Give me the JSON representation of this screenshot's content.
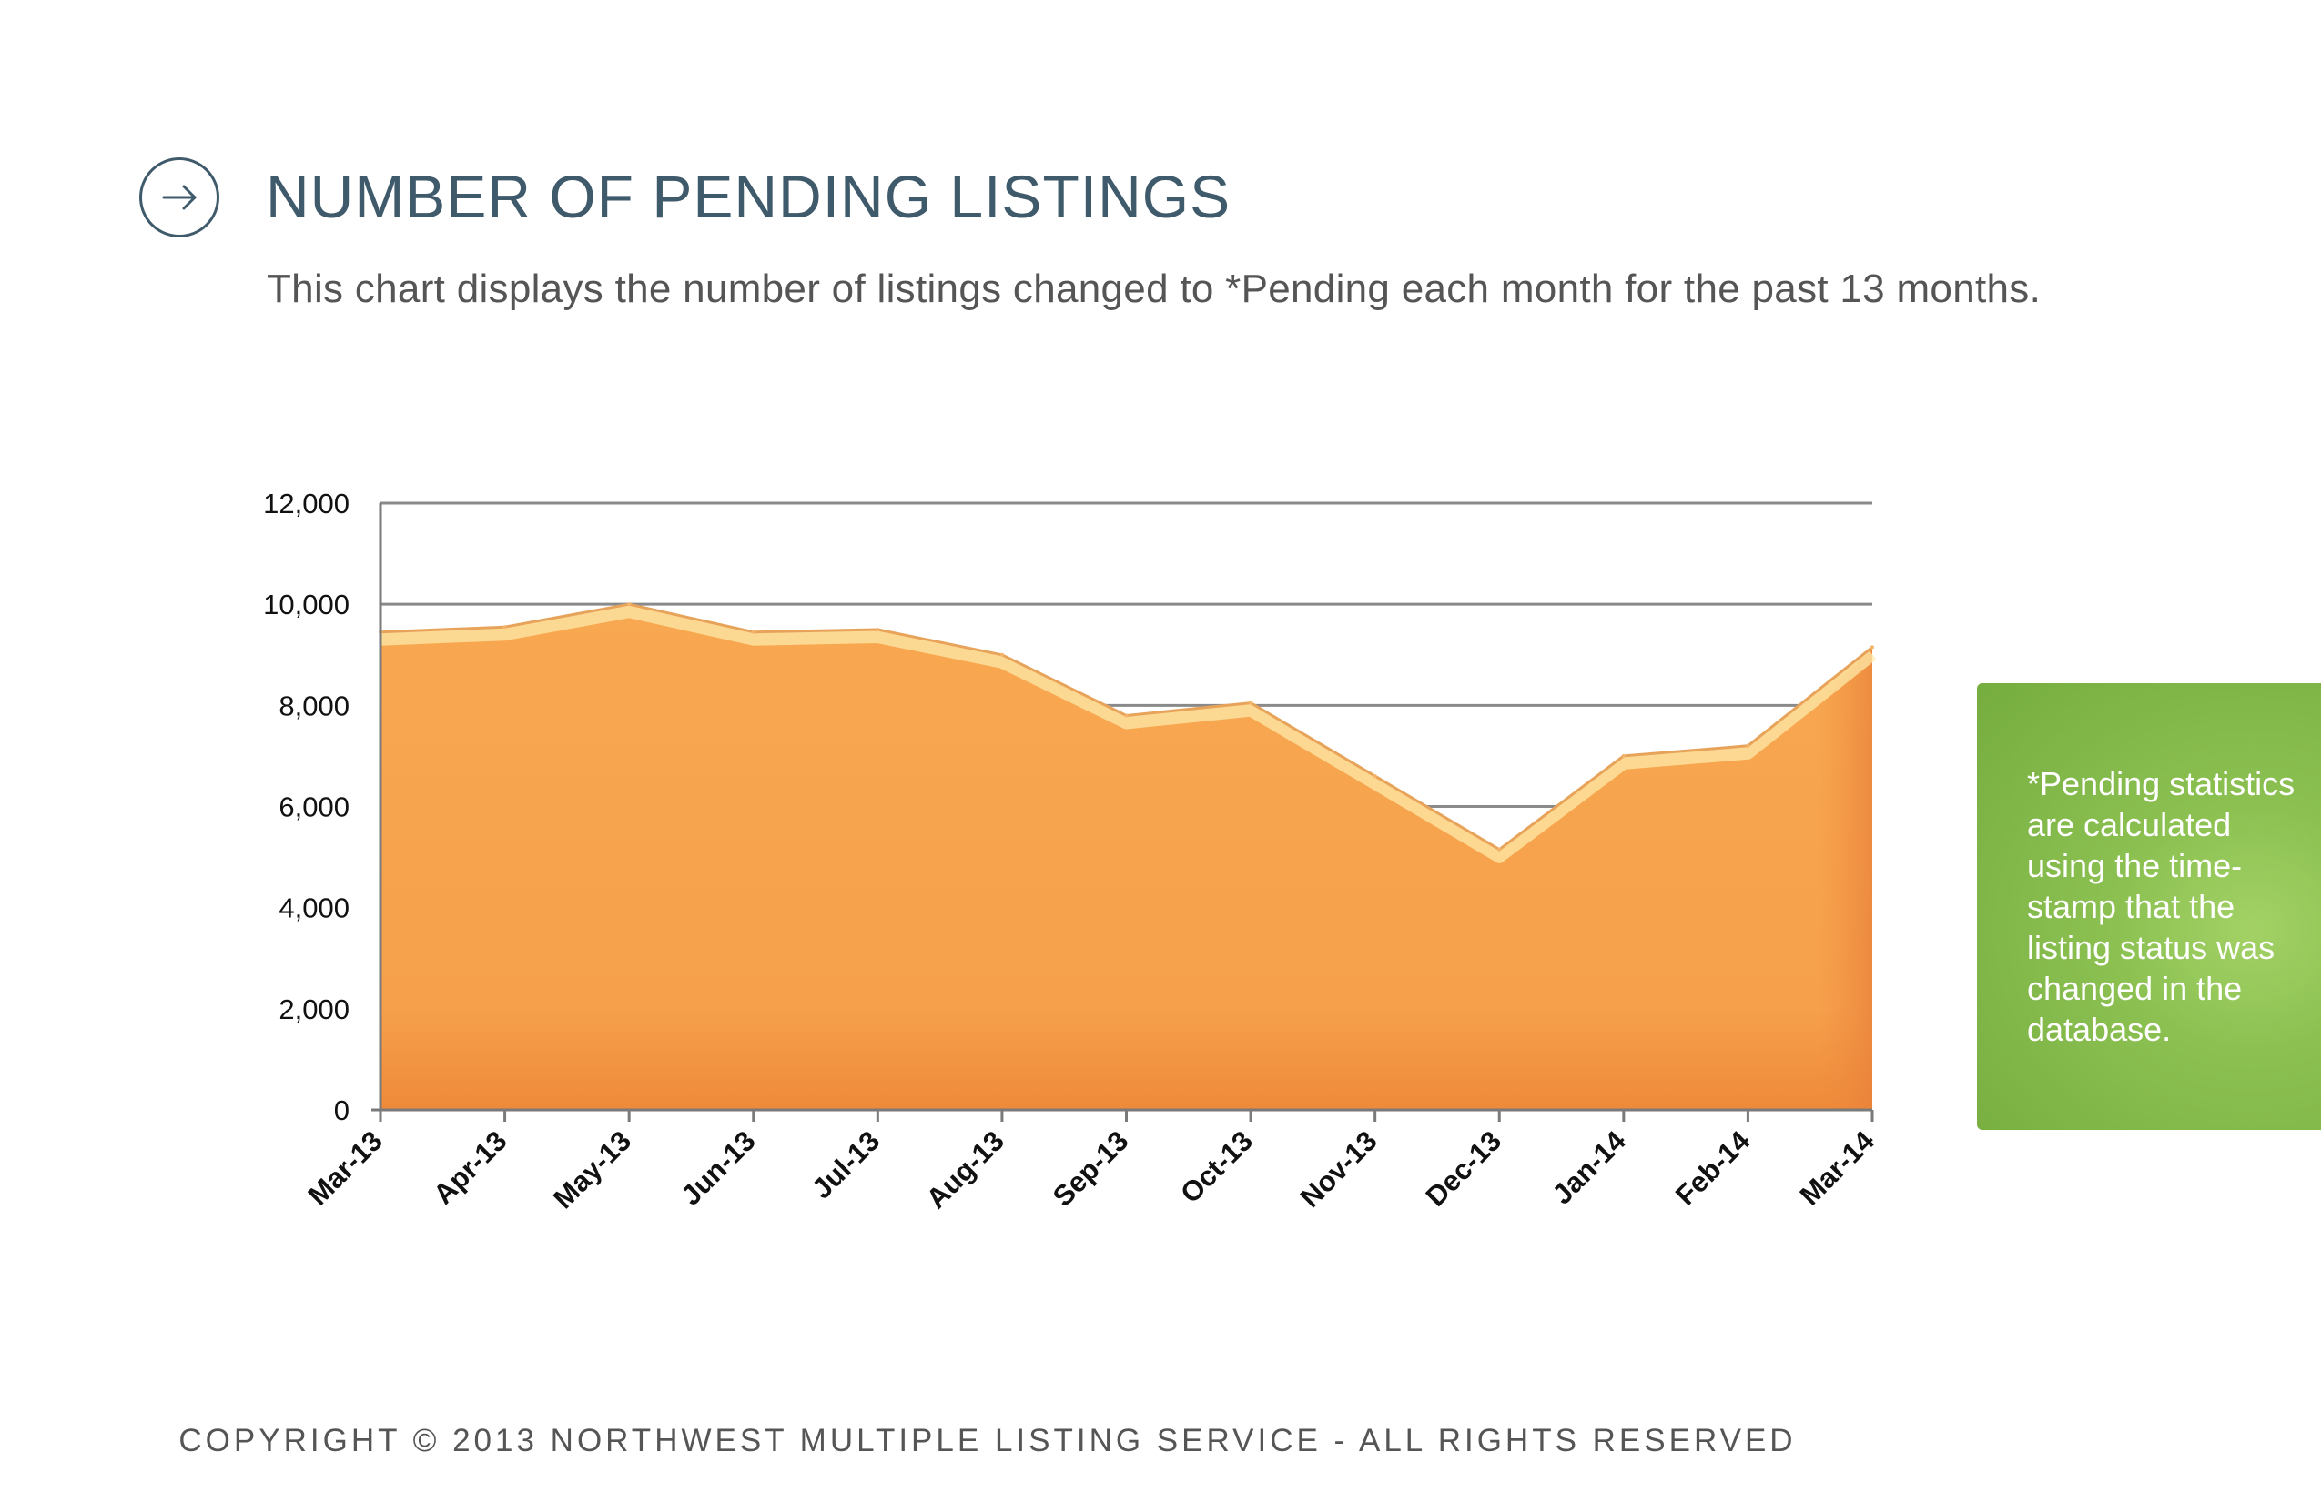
{
  "header": {
    "icon": "arrow-right-circle-icon",
    "title": "NUMBER OF PENDING LISTINGS",
    "subtitle": "This chart displays the number of listings changed to *Pending each month for the past 13 months."
  },
  "note": {
    "text": "*Pending statistics are calculated using the time-stamp that the listing status was changed in the database."
  },
  "footer": {
    "copyright": "COPYRIGHT © 2013 NORTHWEST MULTIPLE LISTING SERVICE - ALL RIGHTS RESERVED"
  },
  "colors": {
    "title": "#3f5a6b",
    "area_fill": "#f5a04f",
    "area_highlight": "#fde9a8",
    "note_box": "#8cc152",
    "gridline": "#8a8a8a"
  },
  "chart_data": {
    "type": "area",
    "categories": [
      "Mar-13",
      "Apr-13",
      "May-13",
      "Jun-13",
      "Jul-13",
      "Aug-13",
      "Sep-13",
      "Oct-13",
      "Nov-13",
      "Dec-13",
      "Jan-14",
      "Feb-14",
      "Mar-14"
    ],
    "values": [
      9450,
      9550,
      10000,
      9450,
      9500,
      9000,
      7800,
      8050,
      6600,
      5150,
      7000,
      7200,
      9150
    ],
    "yticks": [
      "0",
      "2,000",
      "4,000",
      "6,000",
      "8,000",
      "10,000",
      "12,000"
    ],
    "ylim": [
      0,
      12000
    ],
    "ystep": 2000,
    "grid": true,
    "title": "",
    "xlabel": "",
    "ylabel": ""
  }
}
